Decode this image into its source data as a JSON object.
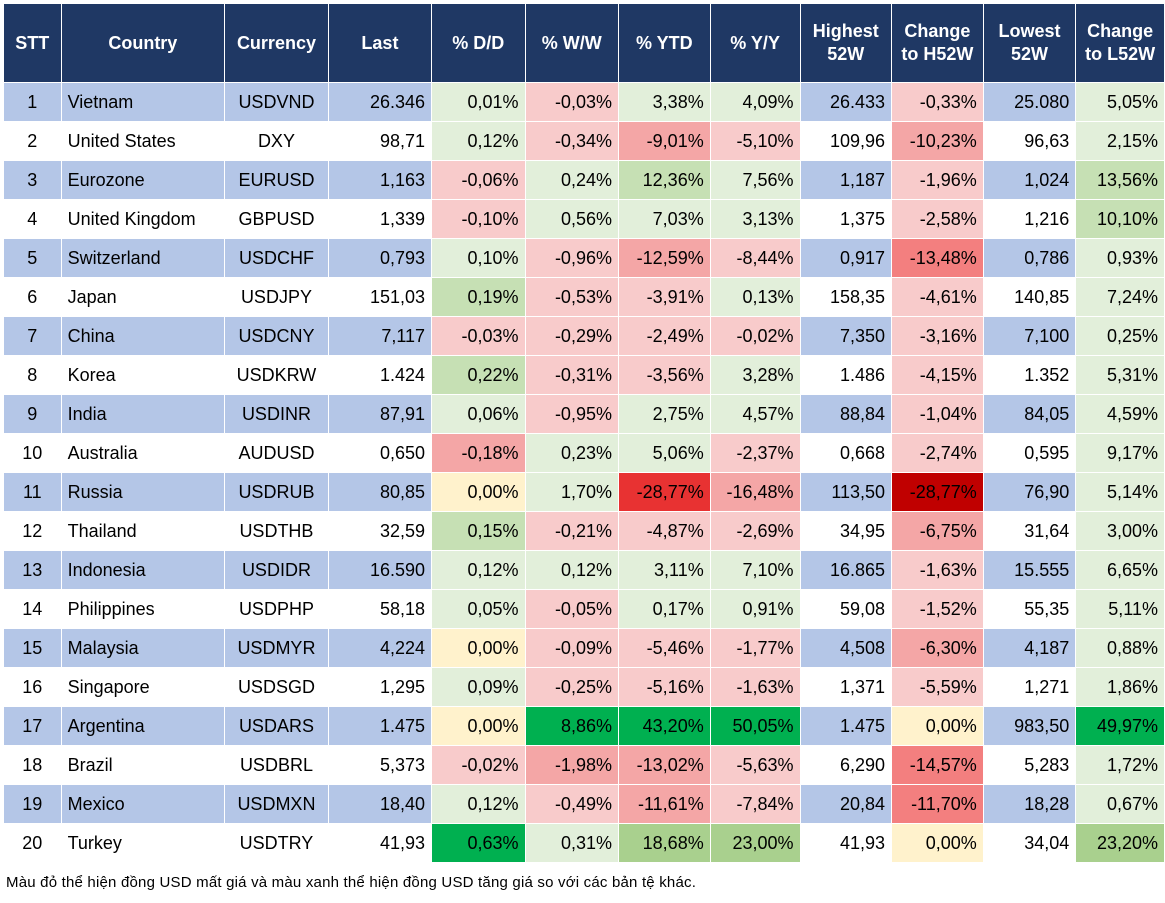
{
  "chart_data": {
    "type": "table",
    "columns": [
      {
        "key": "stt",
        "label": "STT"
      },
      {
        "key": "country",
        "label": "Country"
      },
      {
        "key": "currency",
        "label": "Currency"
      },
      {
        "key": "last",
        "label": "Last"
      },
      {
        "key": "dd",
        "label": "% D/D"
      },
      {
        "key": "ww",
        "label": "% W/W"
      },
      {
        "key": "ytd",
        "label": "% YTD"
      },
      {
        "key": "yy",
        "label": "% Y/Y"
      },
      {
        "key": "high",
        "label": "Highest 52W"
      },
      {
        "key": "chh",
        "label": "Change to H52W"
      },
      {
        "key": "low",
        "label": "Lowest 52W"
      },
      {
        "key": "chl",
        "label": "Change to L52W"
      }
    ],
    "rows": [
      {
        "stt": "1",
        "country": "Vietnam",
        "currency": "USDVND",
        "last": "26.346",
        "dd": "0,01%",
        "ww": "-0,03%",
        "ytd": "3,38%",
        "yy": "4,09%",
        "high": "26.433",
        "chh": "-0,33%",
        "low": "25.080",
        "chl": "5,05%"
      },
      {
        "stt": "2",
        "country": "United States",
        "currency": "DXY",
        "last": "98,71",
        "dd": "0,12%",
        "ww": "-0,34%",
        "ytd": "-9,01%",
        "yy": "-5,10%",
        "high": "109,96",
        "chh": "-10,23%",
        "low": "96,63",
        "chl": "2,15%"
      },
      {
        "stt": "3",
        "country": "Eurozone",
        "currency": "EURUSD",
        "last": "1,163",
        "dd": "-0,06%",
        "ww": "0,24%",
        "ytd": "12,36%",
        "yy": "7,56%",
        "high": "1,187",
        "chh": "-1,96%",
        "low": "1,024",
        "chl": "13,56%"
      },
      {
        "stt": "4",
        "country": "United Kingdom",
        "currency": "GBPUSD",
        "last": "1,339",
        "dd": "-0,10%",
        "ww": "0,56%",
        "ytd": "7,03%",
        "yy": "3,13%",
        "high": "1,375",
        "chh": "-2,58%",
        "low": "1,216",
        "chl": "10,10%"
      },
      {
        "stt": "5",
        "country": "Switzerland",
        "currency": "USDCHF",
        "last": "0,793",
        "dd": "0,10%",
        "ww": "-0,96%",
        "ytd": "-12,59%",
        "yy": "-8,44%",
        "high": "0,917",
        "chh": "-13,48%",
        "low": "0,786",
        "chl": "0,93%"
      },
      {
        "stt": "6",
        "country": "Japan",
        "currency": "USDJPY",
        "last": "151,03",
        "dd": "0,19%",
        "ww": "-0,53%",
        "ytd": "-3,91%",
        "yy": "0,13%",
        "high": "158,35",
        "chh": "-4,61%",
        "low": "140,85",
        "chl": "7,24%"
      },
      {
        "stt": "7",
        "country": "China",
        "currency": "USDCNY",
        "last": "7,117",
        "dd": "-0,03%",
        "ww": "-0,29%",
        "ytd": "-2,49%",
        "yy": "-0,02%",
        "high": "7,350",
        "chh": "-3,16%",
        "low": "7,100",
        "chl": "0,25%"
      },
      {
        "stt": "8",
        "country": "Korea",
        "currency": "USDKRW",
        "last": "1.424",
        "dd": "0,22%",
        "ww": "-0,31%",
        "ytd": "-3,56%",
        "yy": "3,28%",
        "high": "1.486",
        "chh": "-4,15%",
        "low": "1.352",
        "chl": "5,31%"
      },
      {
        "stt": "9",
        "country": "India",
        "currency": "USDINR",
        "last": "87,91",
        "dd": "0,06%",
        "ww": "-0,95%",
        "ytd": "2,75%",
        "yy": "4,57%",
        "high": "88,84",
        "chh": "-1,04%",
        "low": "84,05",
        "chl": "4,59%"
      },
      {
        "stt": "10",
        "country": "Australia",
        "currency": "AUDUSD",
        "last": "0,650",
        "dd": "-0,18%",
        "ww": "0,23%",
        "ytd": "5,06%",
        "yy": "-2,37%",
        "high": "0,668",
        "chh": "-2,74%",
        "low": "0,595",
        "chl": "9,17%"
      },
      {
        "stt": "11",
        "country": "Russia",
        "currency": "USDRUB",
        "last": "80,85",
        "dd": "0,00%",
        "ww": "1,70%",
        "ytd": "-28,77%",
        "yy": "-16,48%",
        "high": "113,50",
        "chh": "-28,77%",
        "low": "76,90",
        "chl": "5,14%"
      },
      {
        "stt": "12",
        "country": "Thailand",
        "currency": "USDTHB",
        "last": "32,59",
        "dd": "0,15%",
        "ww": "-0,21%",
        "ytd": "-4,87%",
        "yy": "-2,69%",
        "high": "34,95",
        "chh": "-6,75%",
        "low": "31,64",
        "chl": "3,00%"
      },
      {
        "stt": "13",
        "country": "Indonesia",
        "currency": "USDIDR",
        "last": "16.590",
        "dd": "0,12%",
        "ww": "0,12%",
        "ytd": "3,11%",
        "yy": "7,10%",
        "high": "16.865",
        "chh": "-1,63%",
        "low": "15.555",
        "chl": "6,65%"
      },
      {
        "stt": "14",
        "country": "Philippines",
        "currency": "USDPHP",
        "last": "58,18",
        "dd": "0,05%",
        "ww": "-0,05%",
        "ytd": "0,17%",
        "yy": "0,91%",
        "high": "59,08",
        "chh": "-1,52%",
        "low": "55,35",
        "chl": "5,11%"
      },
      {
        "stt": "15",
        "country": "Malaysia",
        "currency": "USDMYR",
        "last": "4,224",
        "dd": "0,00%",
        "ww": "-0,09%",
        "ytd": "-5,46%",
        "yy": "-1,77%",
        "high": "4,508",
        "chh": "-6,30%",
        "low": "4,187",
        "chl": "0,88%"
      },
      {
        "stt": "16",
        "country": "Singapore",
        "currency": "USDSGD",
        "last": "1,295",
        "dd": "0,09%",
        "ww": "-0,25%",
        "ytd": "-5,16%",
        "yy": "-1,63%",
        "high": "1,371",
        "chh": "-5,59%",
        "low": "1,271",
        "chl": "1,86%"
      },
      {
        "stt": "17",
        "country": "Argentina",
        "currency": "USDARS",
        "last": "1.475",
        "dd": "0,00%",
        "ww": "8,86%",
        "ytd": "43,20%",
        "yy": "50,05%",
        "high": "1.475",
        "chh": "0,00%",
        "low": "983,50",
        "chl": "49,97%"
      },
      {
        "stt": "18",
        "country": "Brazil",
        "currency": "USDBRL",
        "last": "5,373",
        "dd": "-0,02%",
        "ww": "-1,98%",
        "ytd": "-13,02%",
        "yy": "-5,63%",
        "high": "6,290",
        "chh": "-14,57%",
        "low": "5,283",
        "chl": "1,72%"
      },
      {
        "stt": "19",
        "country": "Mexico",
        "currency": "USDMXN",
        "last": "18,40",
        "dd": "0,12%",
        "ww": "-0,49%",
        "ytd": "-11,61%",
        "yy": "-7,84%",
        "high": "20,84",
        "chh": "-11,70%",
        "low": "18,28",
        "chl": "0,67%"
      },
      {
        "stt": "20",
        "country": "Turkey",
        "currency": "USDTRY",
        "last": "41,93",
        "dd": "0,63%",
        "ww": "0,31%",
        "ytd": "18,68%",
        "yy": "23,00%",
        "high": "41,93",
        "chh": "0,00%",
        "low": "34,04",
        "chl": "23,20%"
      }
    ],
    "colors": {
      "header_bg": "#1f3864",
      "header_text": "#ffffff",
      "row_band": "#b4c6e7",
      "row_plain": "#ffffff",
      "neutral": "#fff2cc",
      "red_scale": [
        "#f8cbcb",
        "#f4a6a6",
        "#f37f7f",
        "#e83232",
        "#c00000"
      ],
      "green_scale": [
        "#e2efda",
        "#c6e0b4",
        "#a9d08e",
        "#7dc242",
        "#00b050"
      ]
    }
  },
  "footnote": "Màu đỏ thể hiện đồng USD mất giá và màu xanh thể hiện đồng USD tăng giá so với các bản tệ khác."
}
